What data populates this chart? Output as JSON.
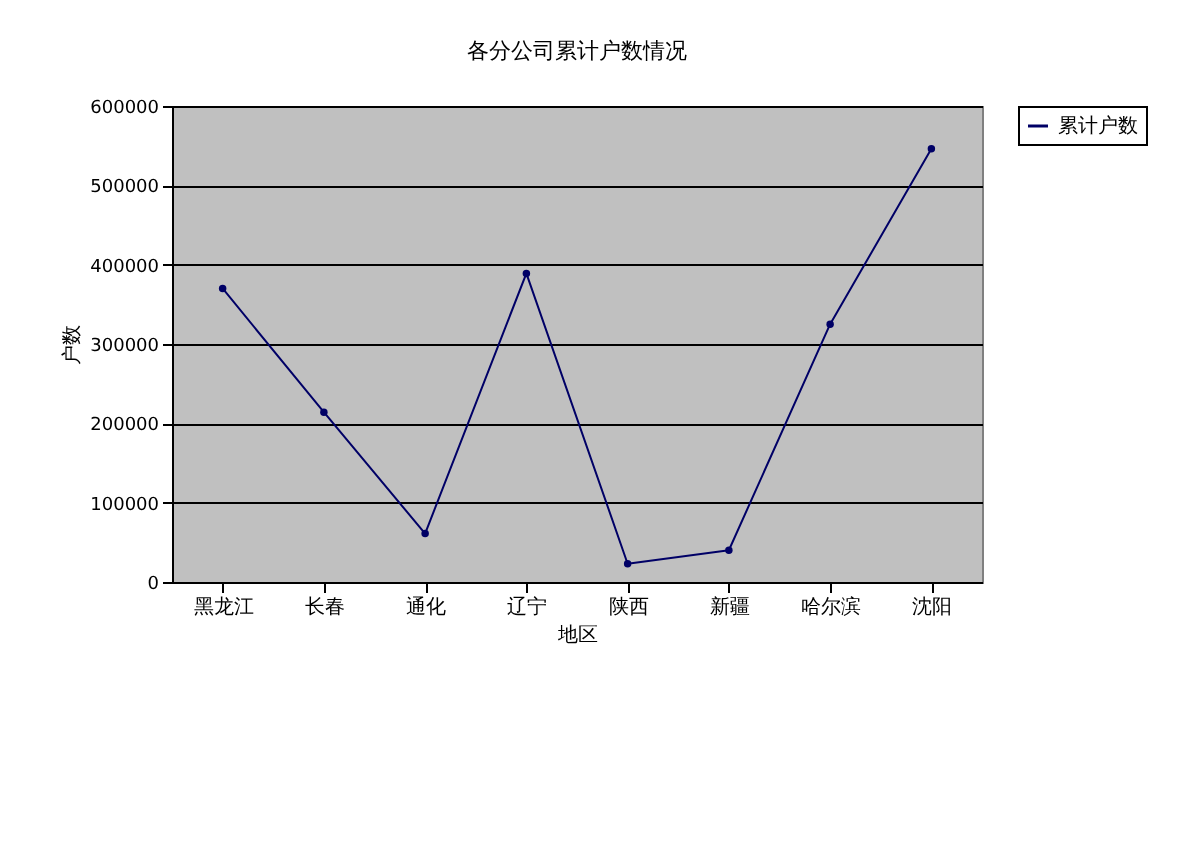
{
  "chart_data": {
    "type": "line",
    "title": "各分公司累计户数情况",
    "xlabel": "地区",
    "ylabel": "户数",
    "categories": [
      "黑龙江",
      "长春",
      "通化",
      "辽宁",
      "陕西",
      "新疆",
      "哈尔滨",
      "沈阳"
    ],
    "series": [
      {
        "name": "累计户数",
        "color": "#000066",
        "values": [
          370000,
          214000,
          61000,
          389000,
          23000,
          40000,
          325000,
          546000
        ]
      }
    ],
    "ylim": [
      0,
      600000
    ],
    "yticks": [
      0,
      100000,
      200000,
      300000,
      400000,
      500000,
      600000
    ],
    "grid": "y",
    "legend": "right",
    "marker": "circle",
    "line_style": "solid"
  }
}
